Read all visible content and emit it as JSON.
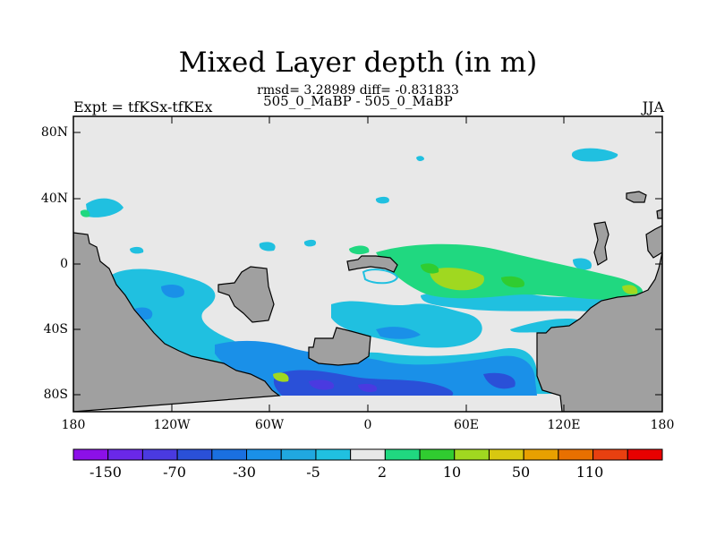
{
  "title": "Mixed Layer depth (in m)",
  "stats": "rmsd= 3.28989 diff= -0.831833",
  "subtitle": "505_0_MaBP - 505_0_MaBP",
  "left_label": "Expt = tfKSx-tfKEx",
  "right_label": "JJA",
  "y_ticks": [
    "80N",
    "40N",
    "0",
    "40S",
    "80S"
  ],
  "x_ticks": [
    "180",
    "120W",
    "60W",
    "0",
    "60E",
    "120E",
    "180"
  ],
  "colorbar": {
    "labels": [
      "-150",
      "-70",
      "-30",
      "-5",
      "2",
      "10",
      "50",
      "110"
    ],
    "colors": [
      "#8c10e8",
      "#6a28e8",
      "#4a3ae0",
      "#2a50d8",
      "#1a70e0",
      "#1a90e8",
      "#20a8e0",
      "#20c0e0",
      "#e8e8e8",
      "#20d880",
      "#30cc30",
      "#a0d820",
      "#d8c810",
      "#e8a000",
      "#e87000",
      "#e84010",
      "#e80000"
    ]
  },
  "colors": {
    "land": "#a0a0a0",
    "ocean_background": "#e8e8e8",
    "coastline": "#000000"
  }
}
